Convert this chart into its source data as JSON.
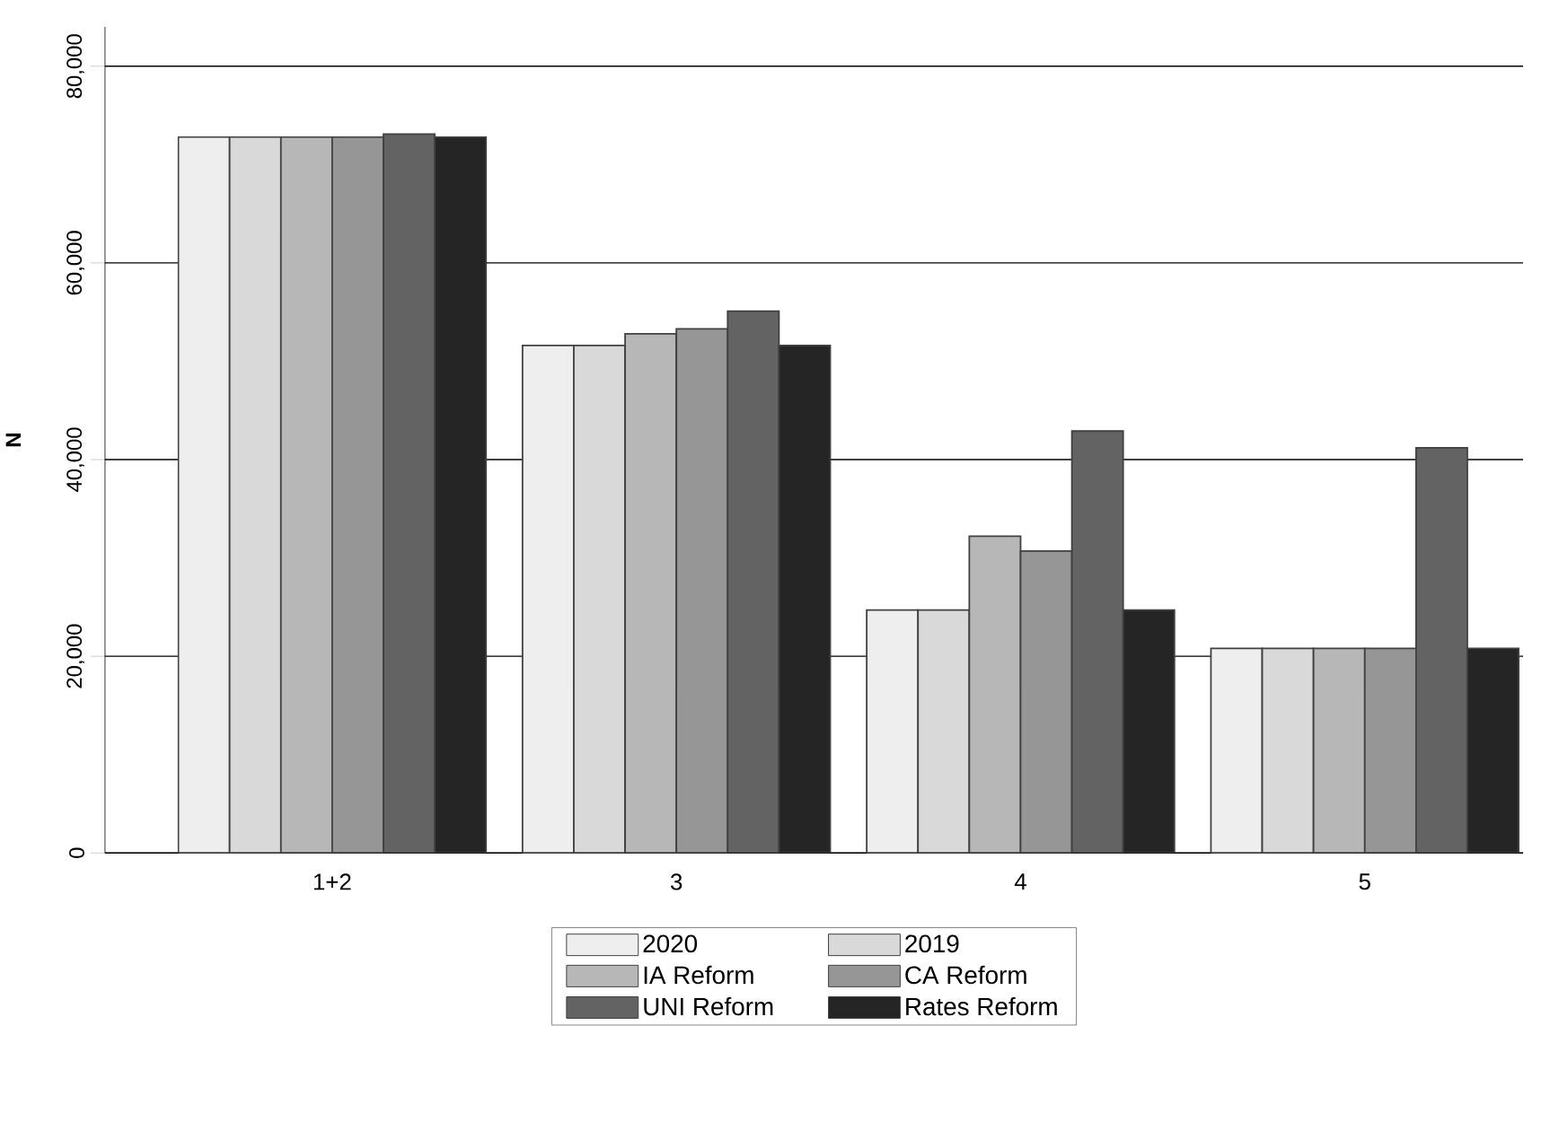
{
  "chart_data": {
    "type": "bar",
    "ylabel": "N",
    "categories": [
      "1+2",
      "3",
      "4",
      "5"
    ],
    "series": [
      {
        "name": "2020",
        "color": "#eeeeee",
        "values": [
          72800,
          51600,
          24700,
          20800
        ]
      },
      {
        "name": "2019",
        "color": "#d9d9d9",
        "values": [
          72800,
          51600,
          24700,
          20800
        ]
      },
      {
        "name": "IA Reform",
        "color": "#b7b7b7",
        "values": [
          72800,
          52800,
          32200,
          20800
        ]
      },
      {
        "name": "CA Reform",
        "color": "#969696",
        "values": [
          72800,
          53300,
          30700,
          20800
        ]
      },
      {
        "name": "UNI Reform",
        "color": "#636363",
        "values": [
          73100,
          55100,
          42900,
          41200
        ]
      },
      {
        "name": "Rates Reform",
        "color": "#252525",
        "values": [
          72800,
          51600,
          24700,
          20800
        ]
      }
    ],
    "ylim": [
      0,
      84000
    ],
    "yticks": [
      0,
      {
        "value": 20000,
        "label": "20,000"
      },
      {
        "value": 40000,
        "label": "40,000"
      },
      {
        "value": 60000,
        "label": "60,000"
      },
      {
        "value": 80000,
        "label": "80,000"
      }
    ],
    "grid": "y",
    "legend": "bottom"
  }
}
